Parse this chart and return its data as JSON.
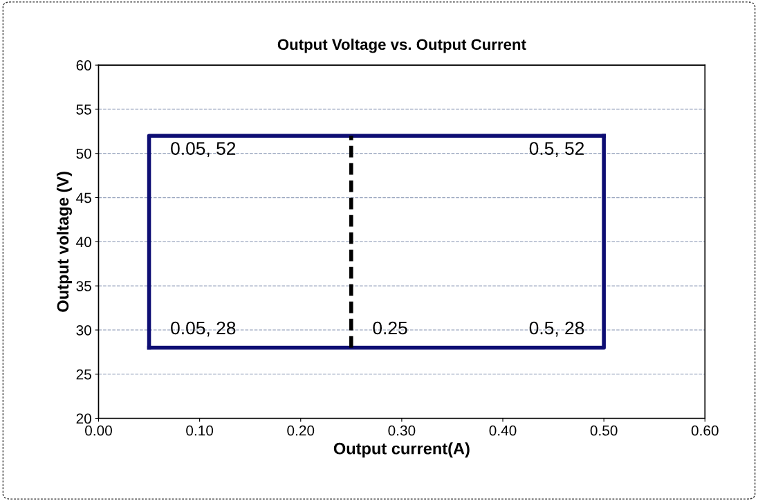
{
  "chart_data": {
    "type": "line",
    "title": "Output Voltage vs. Output Current",
    "xlabel": "Output current(A)",
    "ylabel": "Output voltage (V)",
    "series": [
      {
        "color": "#0d0d73",
        "x": [
          0.05,
          0.5,
          0.5
        ],
        "values": [
          28,
          28,
          52
        ],
        "line_style": "solid"
      },
      {
        "color": "#0d0d73",
        "x": [
          0.5,
          0.05,
          0.05
        ],
        "values": [
          52,
          52,
          28
        ],
        "line_style": "solid"
      },
      {
        "color": "#000000",
        "x": [
          0.25,
          0.25
        ],
        "values": [
          28,
          52
        ],
        "line_style": "dashed"
      }
    ],
    "annotations": [
      {
        "text": "0.05, 52",
        "x": 0.05,
        "y": 52
      },
      {
        "text": "0.5, 52",
        "x": 0.5,
        "y": 52
      },
      {
        "text": "0.05, 28",
        "x": 0.05,
        "y": 28
      },
      {
        "text": "0.25",
        "x": 0.25,
        "y": 28
      },
      {
        "text": "0.5, 28",
        "x": 0.5,
        "y": 28
      }
    ],
    "xlim": [
      0,
      0.6
    ],
    "xticks": [
      {
        "value": 0,
        "label": "0.00"
      },
      {
        "value": 0.1,
        "label": "0.10"
      },
      {
        "value": 0.2,
        "label": "0.20"
      },
      {
        "value": 0.3,
        "label": "0.30"
      },
      {
        "value": 0.4,
        "label": "0.40"
      },
      {
        "value": 0.5,
        "label": "0.50"
      },
      {
        "value": 0.6,
        "label": "0.60"
      }
    ],
    "ylim": [
      20,
      60
    ],
    "yticks": [
      20,
      25,
      30,
      35,
      40,
      45,
      50,
      55,
      60
    ],
    "grid": "y",
    "marker": "none"
  }
}
